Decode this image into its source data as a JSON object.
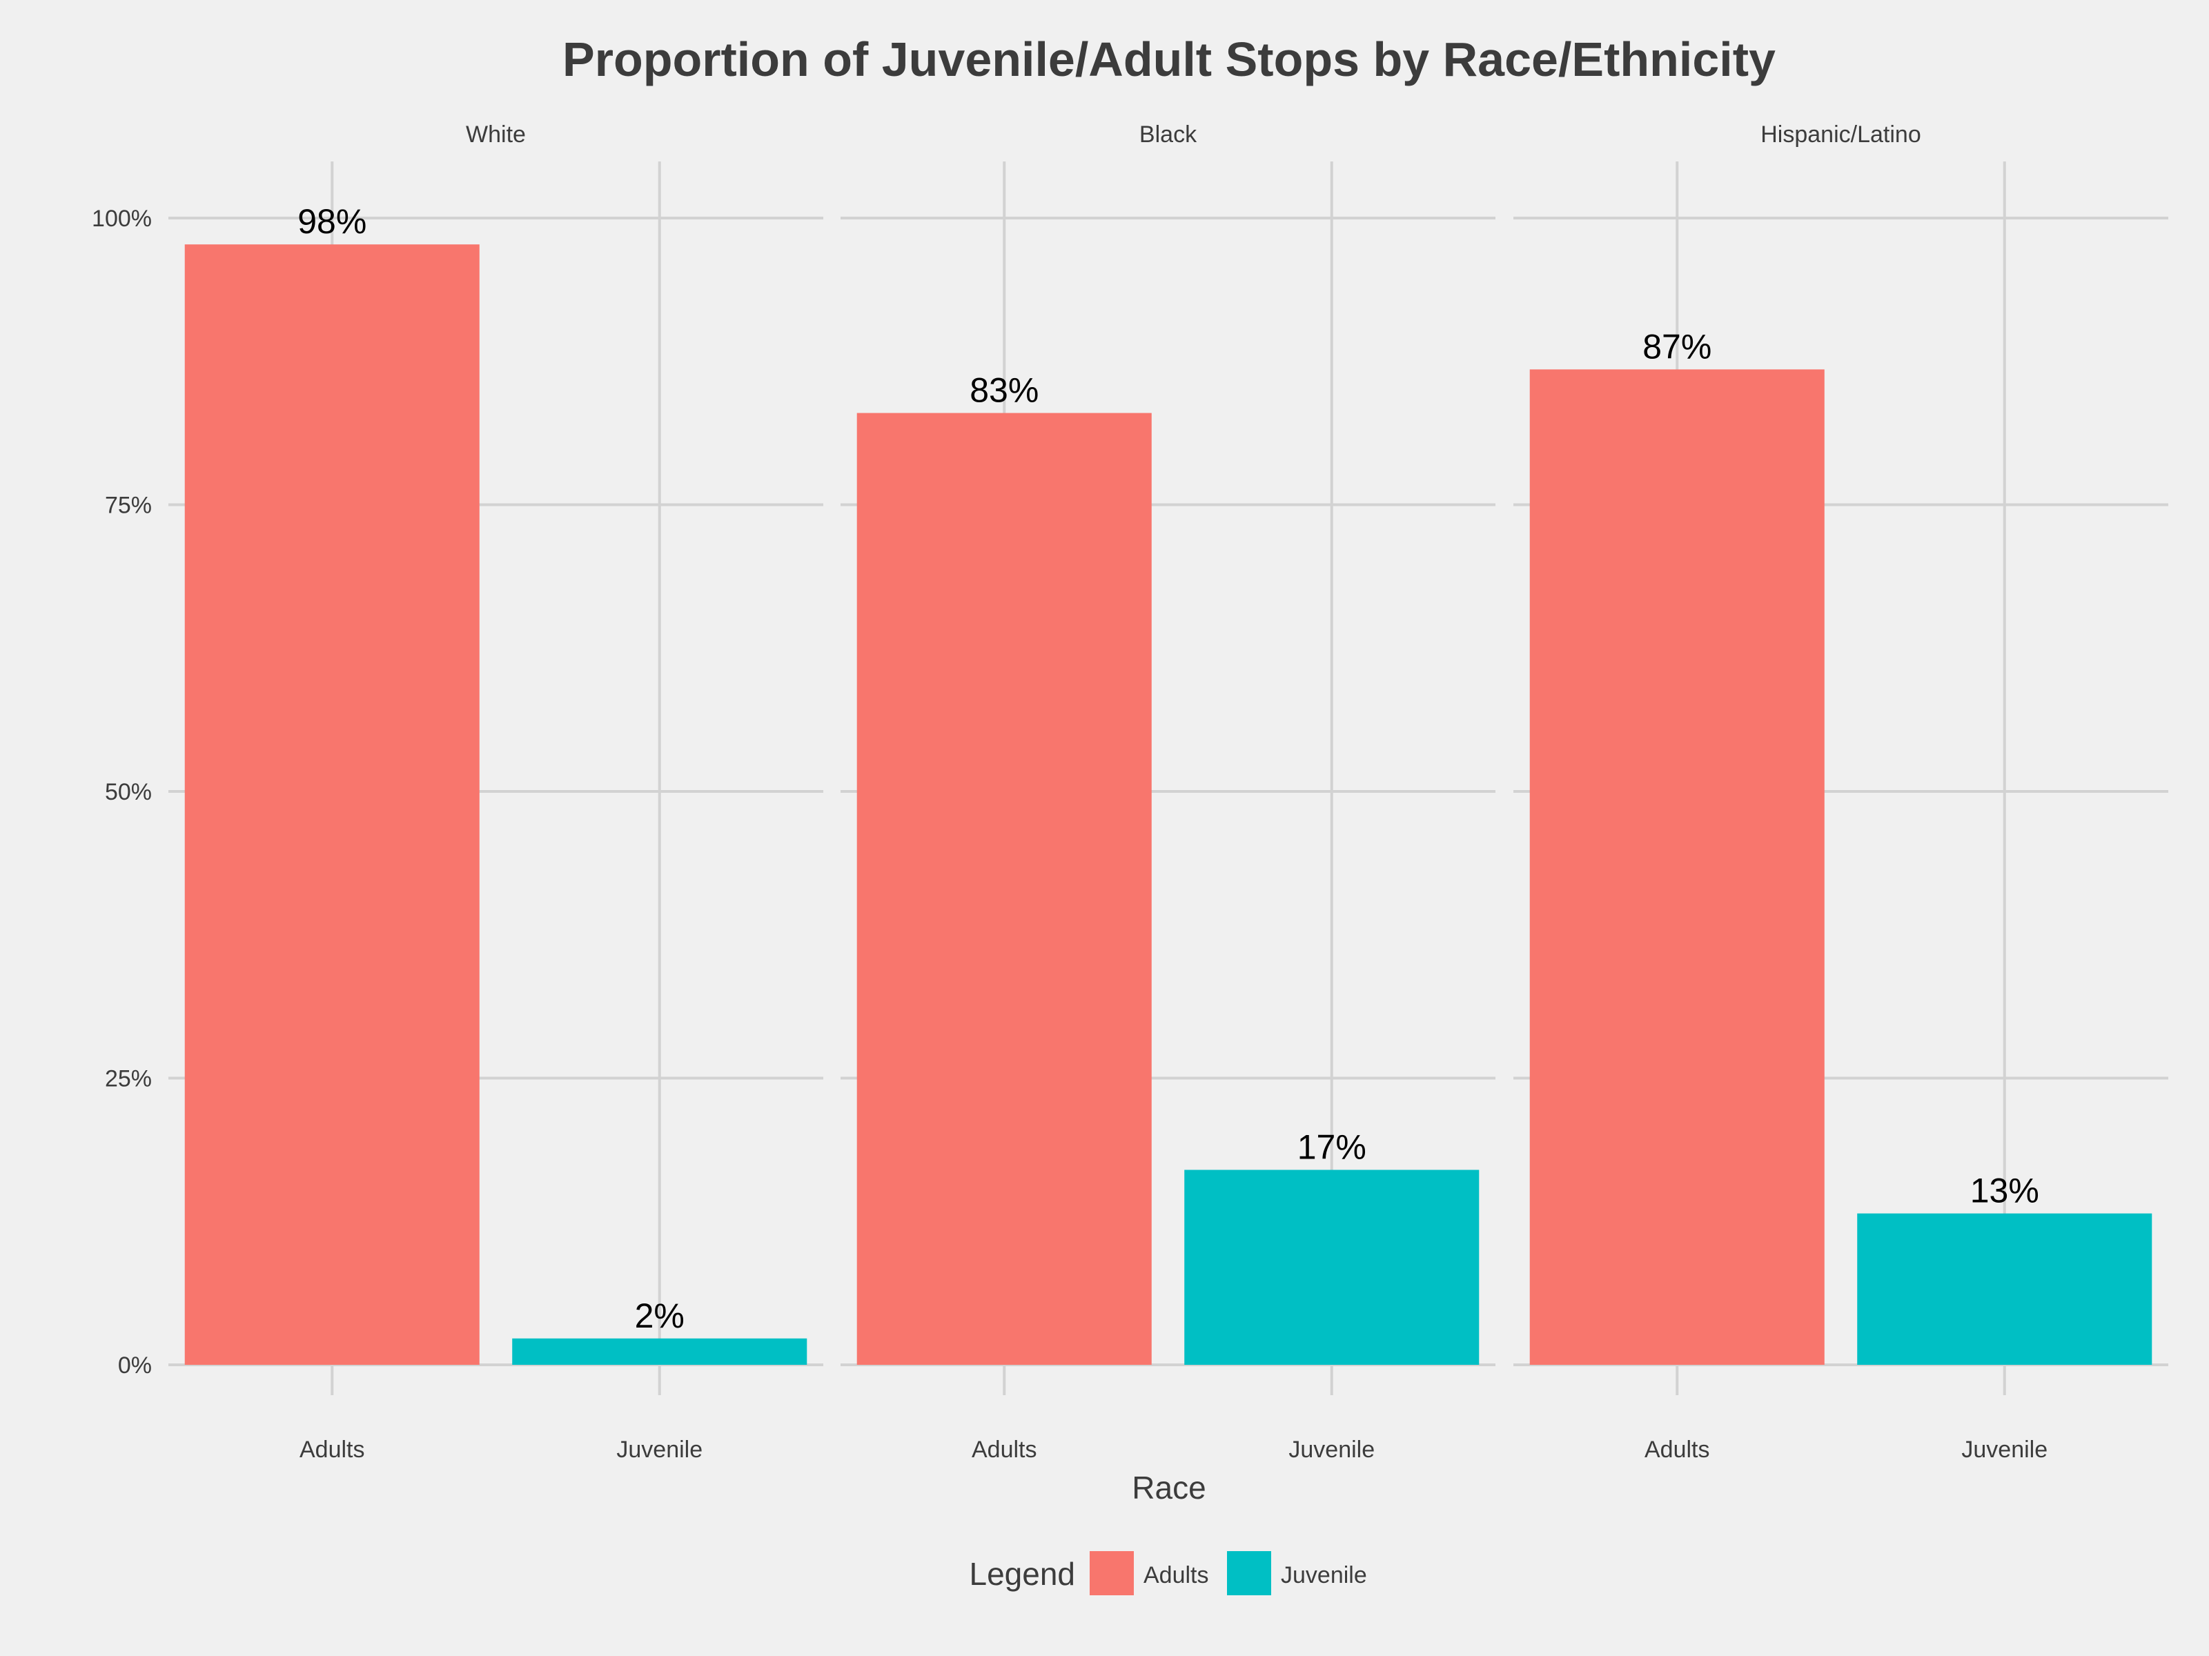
{
  "chart_data": {
    "type": "bar",
    "title": "Proportion of Juvenile/Adult Stops by Race/Ethnicity",
    "xlabel": "Race",
    "ylabel": "",
    "ylim": [
      0,
      1
    ],
    "y_ticks": [
      0,
      0.25,
      0.5,
      0.75,
      1.0
    ],
    "y_tick_labels": [
      "0%",
      "25%",
      "50%",
      "75%",
      "100%"
    ],
    "categories": [
      "Adults",
      "Juvenile"
    ],
    "facets": [
      {
        "name": "White",
        "values": [
          0.977,
          0.023
        ],
        "labels": [
          "98%",
          "2%"
        ]
      },
      {
        "name": "Black",
        "values": [
          0.83,
          0.17
        ],
        "labels": [
          "83%",
          "17%"
        ]
      },
      {
        "name": "Hispanic/Latino",
        "values": [
          0.868,
          0.132
        ],
        "labels": [
          "87%",
          "13%"
        ]
      }
    ],
    "legend": {
      "title": "Legend",
      "position": "bottom",
      "entries": [
        {
          "name": "Adults",
          "color": "#f8766d"
        },
        {
          "name": "Juvenile",
          "color": "#00bfc4"
        }
      ]
    },
    "grid": true,
    "colors": {
      "background": "#f0f0f0",
      "grid": "#d2d2d2",
      "text": "#3c3c3c",
      "label": "#000000"
    }
  }
}
